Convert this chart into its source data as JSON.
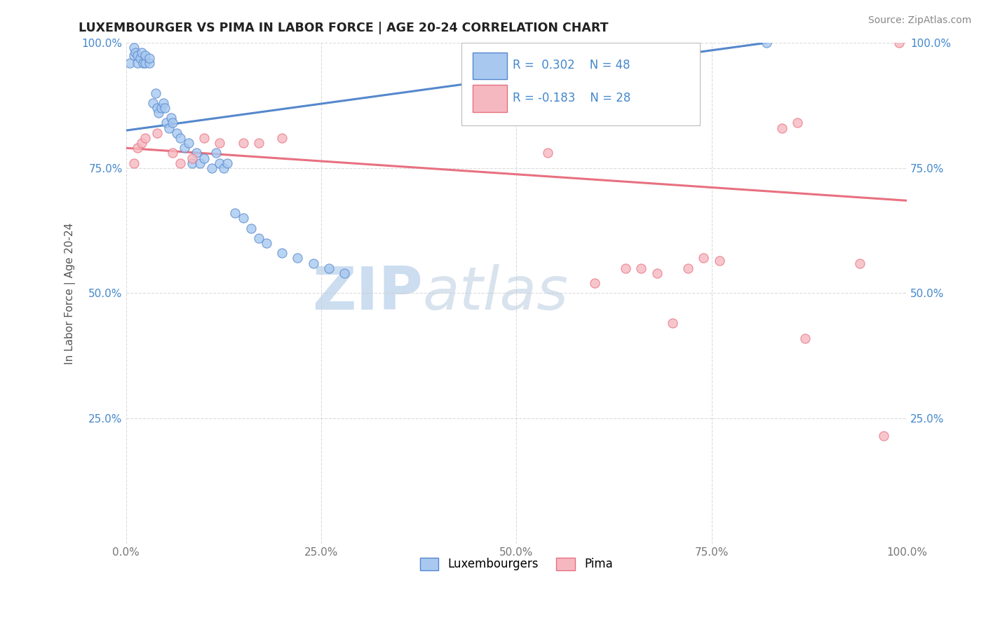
{
  "title": "LUXEMBOURGER VS PIMA IN LABOR FORCE | AGE 20-24 CORRELATION CHART",
  "source_text": "Source: ZipAtlas.com",
  "ylabel": "In Labor Force | Age 20-24",
  "xlim": [
    0.0,
    1.0
  ],
  "ylim": [
    0.0,
    1.0
  ],
  "xtick_labels": [
    "0.0%",
    "25.0%",
    "50.0%",
    "75.0%",
    "100.0%"
  ],
  "xtick_vals": [
    0.0,
    0.25,
    0.5,
    0.75,
    1.0
  ],
  "ytick_labels": [
    "25.0%",
    "50.0%",
    "75.0%",
    "100.0%"
  ],
  "ytick_vals": [
    0.25,
    0.5,
    0.75,
    1.0
  ],
  "legend_labels": [
    "Luxembourgers",
    "Pima"
  ],
  "lux_color": "#a8c8f0",
  "pima_color": "#f5b8c0",
  "lux_line_color": "#5588cc",
  "pima_line_color": "#e87080",
  "r_text_color": "#4488cc",
  "background_color": "#ffffff",
  "watermark_color": "#ccddf0",
  "lux_scatter_x": [
    0.005,
    0.01,
    0.01,
    0.012,
    0.015,
    0.015,
    0.018,
    0.02,
    0.022,
    0.025,
    0.025,
    0.03,
    0.03,
    0.035,
    0.038,
    0.04,
    0.042,
    0.045,
    0.048,
    0.05,
    0.052,
    0.055,
    0.058,
    0.06,
    0.065,
    0.07,
    0.075,
    0.08,
    0.085,
    0.09,
    0.095,
    0.1,
    0.11,
    0.115,
    0.12,
    0.125,
    0.13,
    0.14,
    0.15,
    0.16,
    0.17,
    0.18,
    0.2,
    0.22,
    0.24,
    0.26,
    0.28,
    0.82
  ],
  "lux_scatter_y": [
    0.96,
    0.975,
    0.99,
    0.98,
    0.96,
    0.975,
    0.97,
    0.98,
    0.96,
    0.96,
    0.975,
    0.96,
    0.97,
    0.88,
    0.9,
    0.87,
    0.86,
    0.87,
    0.88,
    0.87,
    0.84,
    0.83,
    0.85,
    0.84,
    0.82,
    0.81,
    0.79,
    0.8,
    0.76,
    0.78,
    0.76,
    0.77,
    0.75,
    0.78,
    0.76,
    0.75,
    0.76,
    0.66,
    0.65,
    0.63,
    0.61,
    0.6,
    0.58,
    0.57,
    0.56,
    0.55,
    0.54,
    1.0
  ],
  "pima_scatter_x": [
    0.01,
    0.015,
    0.02,
    0.025,
    0.04,
    0.06,
    0.07,
    0.085,
    0.1,
    0.12,
    0.15,
    0.17,
    0.2,
    0.54,
    0.6,
    0.64,
    0.66,
    0.68,
    0.7,
    0.72,
    0.74,
    0.76,
    0.84,
    0.86,
    0.87,
    0.94,
    0.97,
    0.99
  ],
  "pima_scatter_y": [
    0.76,
    0.79,
    0.8,
    0.81,
    0.82,
    0.78,
    0.76,
    0.77,
    0.81,
    0.8,
    0.8,
    0.8,
    0.81,
    0.78,
    0.52,
    0.55,
    0.55,
    0.54,
    0.44,
    0.55,
    0.57,
    0.565,
    0.83,
    0.84,
    0.41,
    0.56,
    0.215,
    1.0
  ],
  "lux_trendline_x": [
    0.0,
    0.82
  ],
  "lux_trendline_y": [
    0.825,
    1.0
  ],
  "pima_trendline_x": [
    0.0,
    1.0
  ],
  "pima_trendline_y": [
    0.79,
    0.685
  ]
}
